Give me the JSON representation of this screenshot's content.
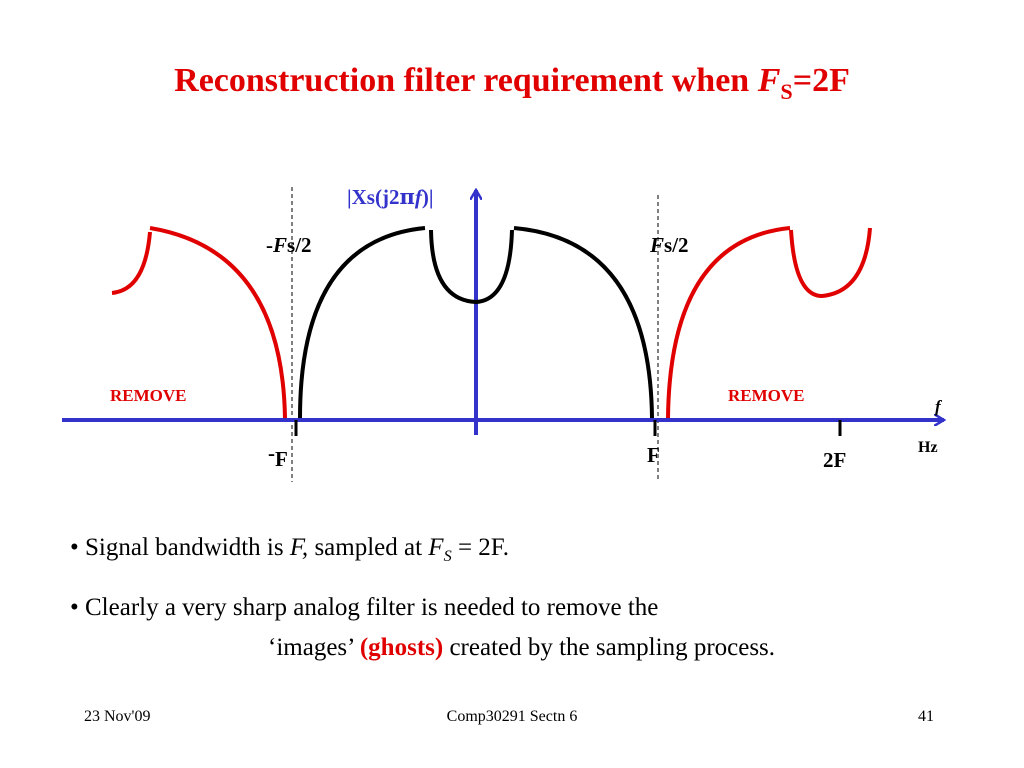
{
  "title": {
    "text": "Reconstruction filter requirement when ",
    "var": "F",
    "sub": "S",
    "rest": "=2F"
  },
  "diagram": {
    "y_label": {
      "pre": "|Xs(j2",
      "pi": "π",
      "f": "f",
      "post": ")|"
    },
    "left_half": {
      "sign": "-",
      "var": "F",
      "rest": "s/2"
    },
    "right_half": {
      "var": "F",
      "rest": "s/2"
    },
    "remove_left": "REMOVE",
    "remove_right": "REMOVE",
    "f_axis": "f",
    "hz": "Hz",
    "tick_neg": {
      "sign": "-",
      "var": "F"
    },
    "tick_pos": "F",
    "tick_2f": "2F"
  },
  "bullets": [
    {
      "a": "• Signal bandwidth is ",
      "b": "F,",
      "c": " sampled at ",
      "d": "F",
      "e": "S",
      "f": " = 2F."
    },
    {
      "a": "• Clearly a very sharp analog filter is needed to remove the",
      "b": "‘images’ ",
      "c": "(ghosts)",
      "d": " created by the sampling process."
    }
  ],
  "footer": {
    "date": "23 Nov'09",
    "course": "Comp30291 Sectn 6",
    "page": "41"
  }
}
